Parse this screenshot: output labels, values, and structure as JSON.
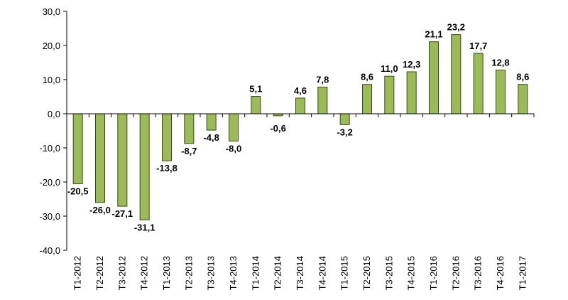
{
  "chart_data": {
    "type": "bar",
    "categories": [
      "T1-2012",
      "T2-2012",
      "T3-2012",
      "T4-2012",
      "T1-2013",
      "T2-2013",
      "T3-2013",
      "T4-2013",
      "T1-2014",
      "T2-2014",
      "T3-2014",
      "T4-2014",
      "T1-2015",
      "T2-2015",
      "T3-2015",
      "T4-2015",
      "T1-2016",
      "T2-2016",
      "T3-2016",
      "T4-2016",
      "T1-2017"
    ],
    "values": [
      -20.5,
      -26.0,
      -27.1,
      -31.1,
      -13.8,
      -8.7,
      -4.8,
      -8.0,
      5.1,
      -0.6,
      4.6,
      7.8,
      -3.2,
      8.6,
      11.0,
      12.3,
      21.1,
      23.2,
      17.7,
      12.8,
      8.6
    ],
    "data_labels": [
      "-20,5",
      "-26,0",
      "-27,1",
      "-31,1",
      "-13,8",
      "-8,7",
      "-4,8",
      "-8,0",
      "5,1",
      "-0,6",
      "4,6",
      "7,8",
      "-3,2",
      "8,6",
      "11,0",
      "12,3",
      "21,1",
      "23,2",
      "17,7",
      "12,8",
      "8,6"
    ],
    "y_ticks": [
      30,
      20,
      10,
      0,
      -10,
      -20,
      -30,
      -40
    ],
    "y_tick_labels": [
      "30,0",
      "20,0",
      "10,0",
      "0,0",
      "-10,0",
      "-20,0",
      "-30,0",
      "-40,0"
    ],
    "ylim": [
      -40,
      30
    ],
    "title": "",
    "xlabel": "",
    "ylabel": "",
    "grid": false,
    "legend": "none",
    "colors": {
      "bar_fill": "#9bbb59",
      "bar_stroke": "#3a4a12",
      "axis": "#000000"
    }
  }
}
